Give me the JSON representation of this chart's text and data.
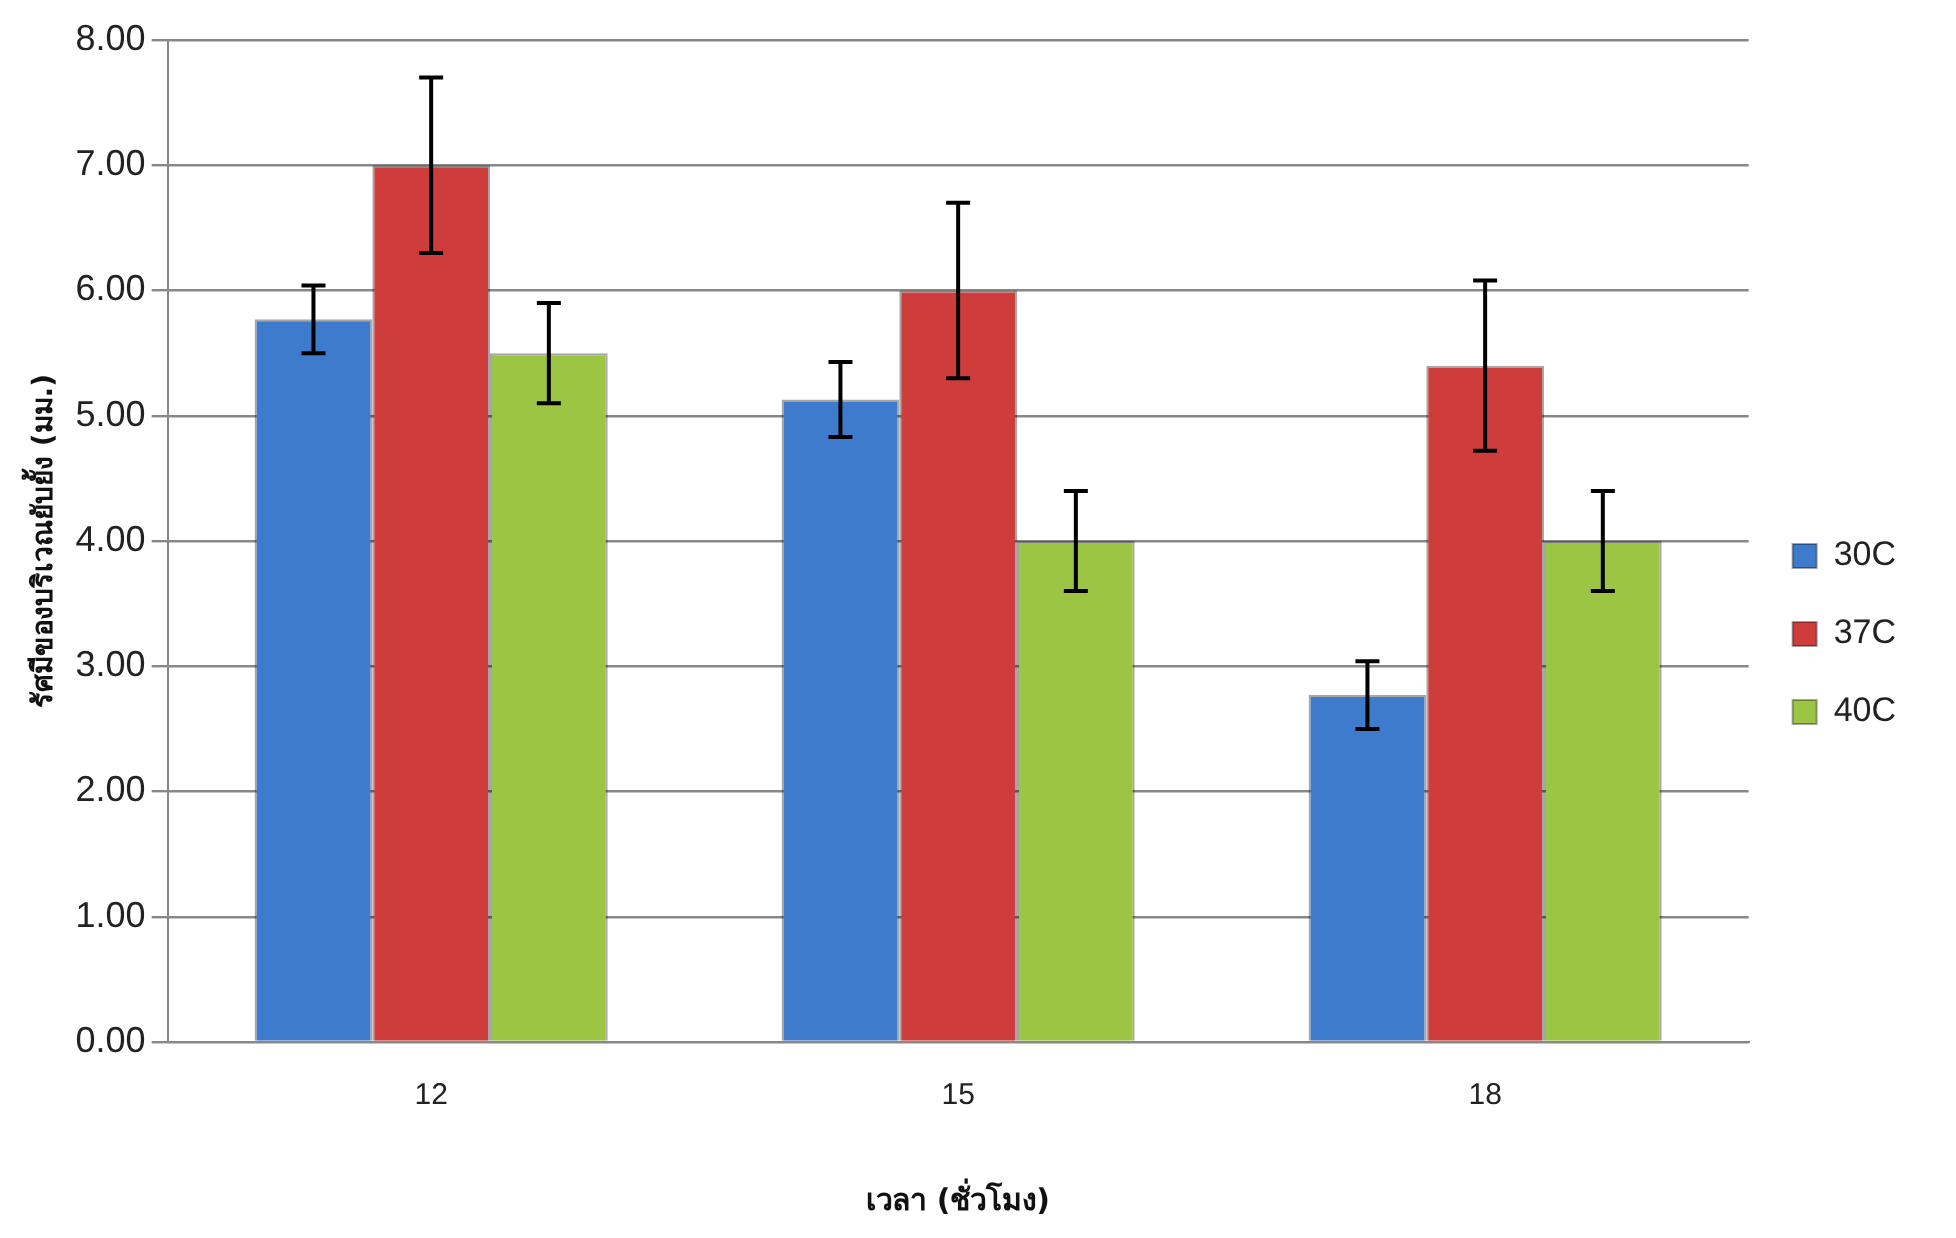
{
  "chart_data": {
    "type": "bar",
    "xlabel": "เวลา (ชั่วโมง)",
    "ylabel": "รัศมีของบริเวณยับยั้ง (มม.)",
    "categories": [
      "12",
      "15",
      "18"
    ],
    "series": [
      {
        "name": "30C",
        "color": "#3f7bcc",
        "values": [
          5.77,
          5.13,
          2.77
        ],
        "errors": [
          0.27,
          0.3,
          0.27
        ]
      },
      {
        "name": "37C",
        "color": "#cf3c3c",
        "values": [
          7.0,
          6.0,
          5.4
        ],
        "errors": [
          0.7,
          0.7,
          0.68
        ]
      },
      {
        "name": "40C",
        "color": "#9cc544",
        "values": [
          5.5,
          4.0,
          4.0
        ],
        "errors": [
          0.4,
          0.4,
          0.4
        ]
      }
    ],
    "ylim": [
      0,
      8
    ],
    "yticks": [
      {
        "value": 0,
        "label": "0.00"
      },
      {
        "value": 1,
        "label": "1.00"
      },
      {
        "value": 2,
        "label": "2.00"
      },
      {
        "value": 3,
        "label": "3.00"
      },
      {
        "value": 4,
        "label": "4.00"
      },
      {
        "value": 5,
        "label": "5.00"
      },
      {
        "value": 6,
        "label": "6.00"
      },
      {
        "value": 7,
        "label": "7.00"
      },
      {
        "value": 8,
        "label": "8.00"
      }
    ],
    "grid": "y",
    "legend": "right"
  }
}
